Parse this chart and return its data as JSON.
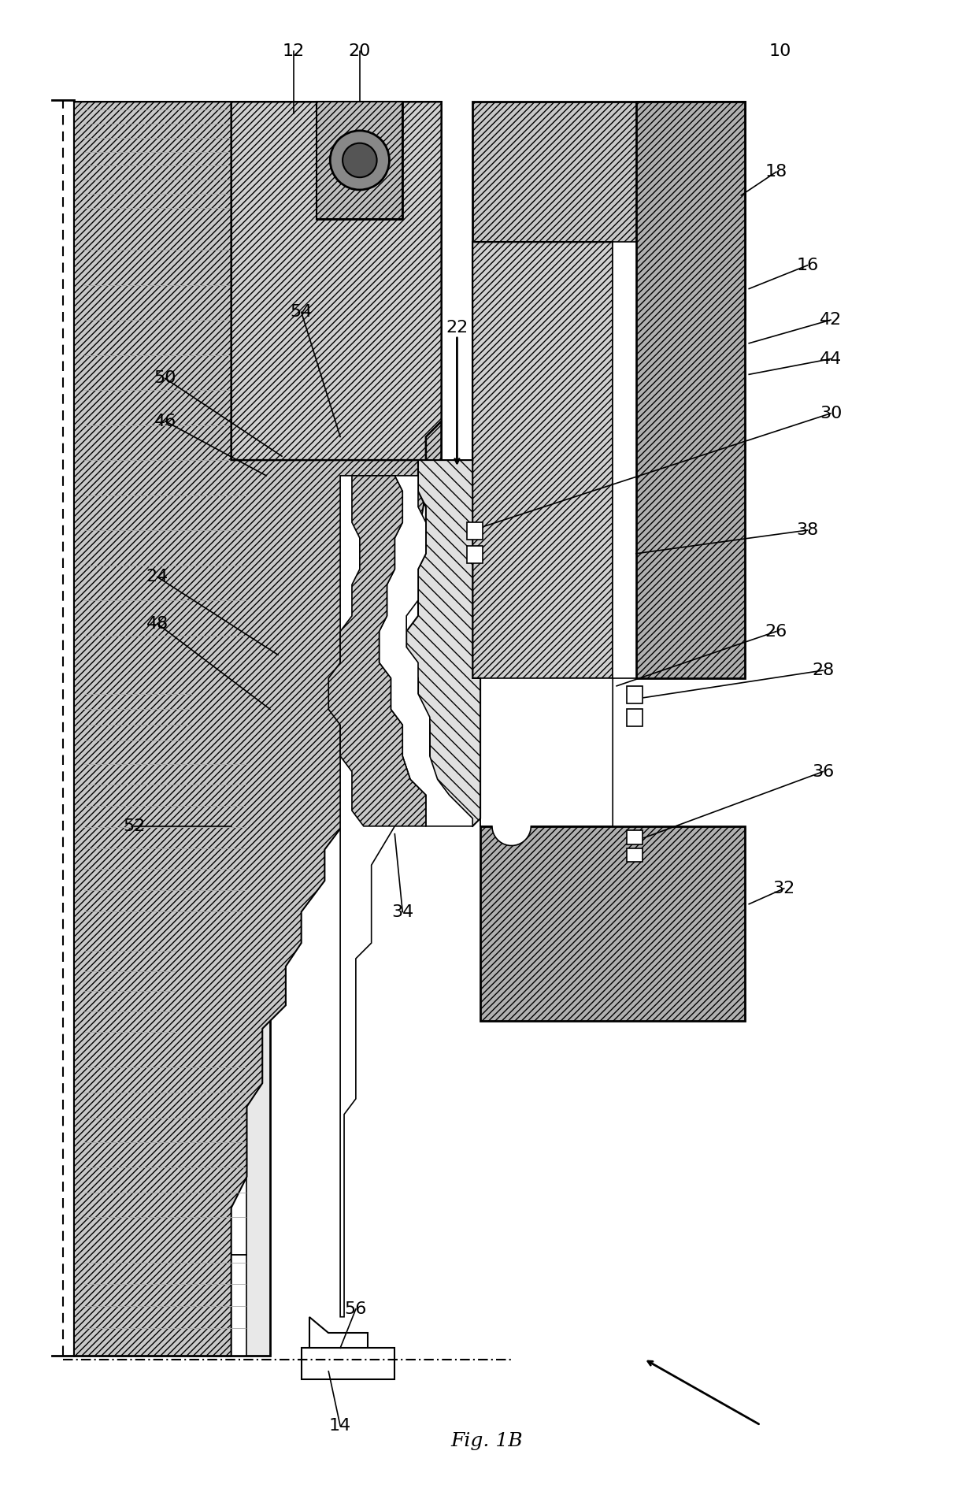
{
  "title": "Fig. 1B",
  "bg": "#ffffff",
  "lc": "#000000",
  "gray_light": "#d8d8d8",
  "gray_mid": "#b8b8b8",
  "gray_dark": "#909090",
  "white": "#ffffff",
  "figsize": [
    12.37,
    18.89
  ],
  "dpi": 100
}
